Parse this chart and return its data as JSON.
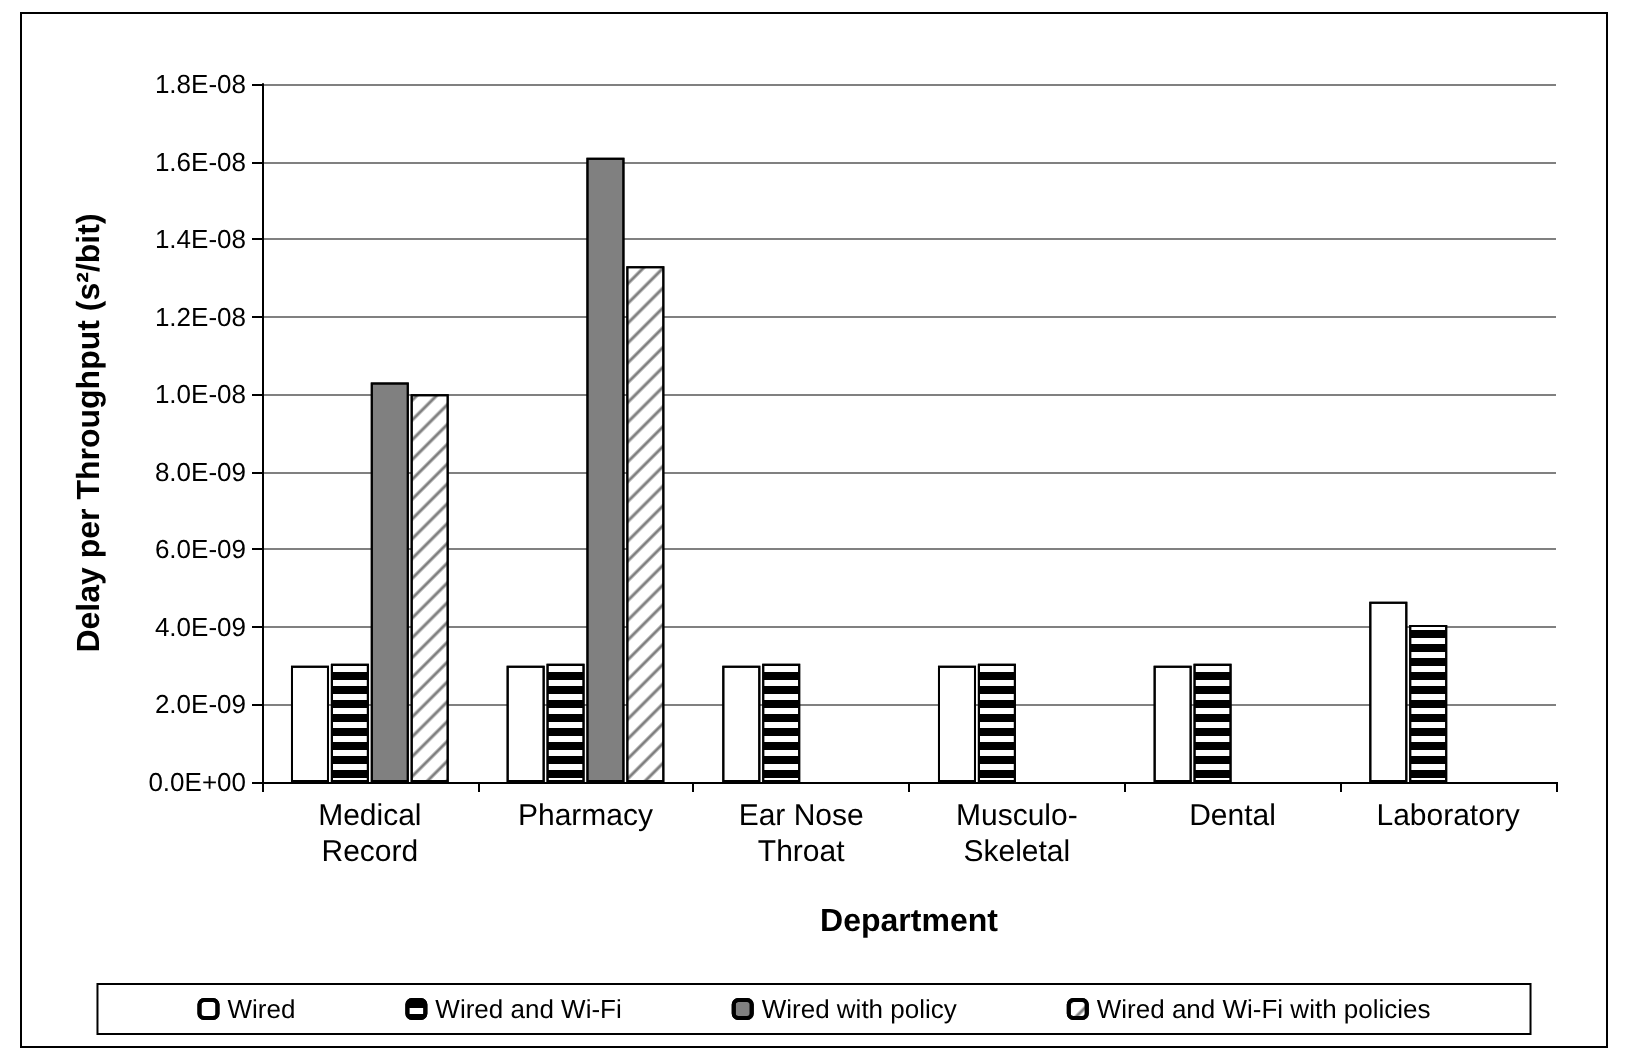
{
  "chart_data": {
    "type": "bar",
    "xlabel": "Department",
    "ylabel": "Delay per Throughput (s²/bit)",
    "categories": [
      "Medical Record",
      "Pharmacy",
      "Ear Nose Throat",
      "Musculo-Skeletal",
      "Dental",
      "Laboratory"
    ],
    "series": [
      {
        "name": "Wired",
        "color": "#ffffff",
        "values": [
          3e-09,
          3e-09,
          3e-09,
          3e-09,
          3e-09,
          4.65e-09
        ]
      },
      {
        "name": "Wired and Wi-Fi",
        "color": "#ffffff",
        "values": [
          3.05e-09,
          3.05e-09,
          3.05e-09,
          3.05e-09,
          3.05e-09,
          4.05e-09
        ]
      },
      {
        "name": "Wired with policy",
        "color": "#808080",
        "values": [
          1.03e-08,
          1.61e-08,
          null,
          null,
          null,
          null
        ]
      },
      {
        "name": "Wired and Wi-Fi with policies",
        "color": "#ffffff",
        "values": [
          1e-08,
          1.33e-08,
          null,
          null,
          null,
          null
        ]
      }
    ],
    "ylim": [
      0,
      1.8e-08
    ],
    "yticks": [
      {
        "value": 0,
        "label": "0.0E+00"
      },
      {
        "value": 2e-09,
        "label": "2.0E-09"
      },
      {
        "value": 4e-09,
        "label": "4.0E-09"
      },
      {
        "value": 6e-09,
        "label": "6.0E-09"
      },
      {
        "value": 8e-09,
        "label": "8.0E-09"
      },
      {
        "value": 1e-08,
        "label": "1.0E-08"
      },
      {
        "value": 1.2e-08,
        "label": "1.2E-08"
      },
      {
        "value": 1.4e-08,
        "label": "1.4E-08"
      },
      {
        "value": 1.6e-08,
        "label": "1.6E-08"
      },
      {
        "value": 1.8e-08,
        "label": "1.8E-08"
      }
    ],
    "grid": "y",
    "legend": "bottom"
  }
}
